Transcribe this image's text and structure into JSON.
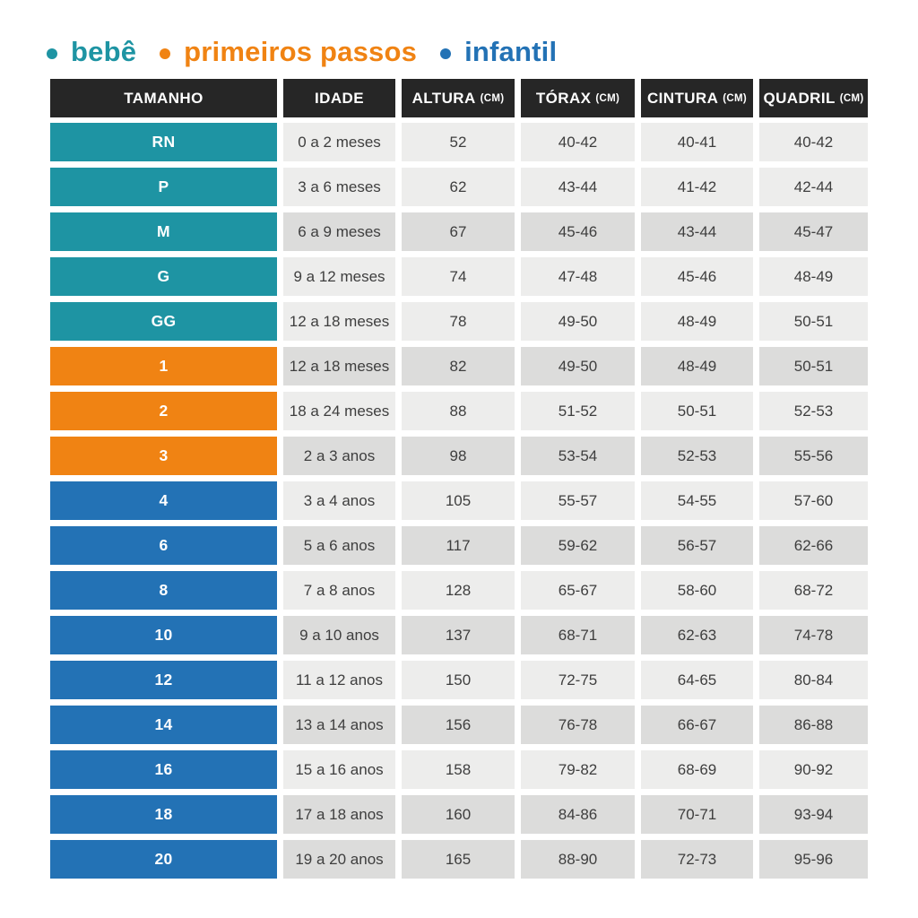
{
  "colors": {
    "bebe": "#1e94a3",
    "primeiros_passos": "#f08313",
    "infantil": "#2372b5",
    "header_bg": "#262626",
    "row_light": "#ededec",
    "row_dark": "#dcdcdb",
    "data_text": "#3e3e3e"
  },
  "chart_data": {
    "type": "table",
    "title": "",
    "legend": [
      {
        "label": "bebê",
        "group": "bebe"
      },
      {
        "label": "primeiros passos",
        "group": "primeiros_passos"
      },
      {
        "label": "infantil",
        "group": "infantil"
      }
    ],
    "columns": [
      {
        "label": "TAMANHO",
        "unit": ""
      },
      {
        "label": "IDADE",
        "unit": ""
      },
      {
        "label": "ALTURA",
        "unit": "(CM)"
      },
      {
        "label": "TÓRAX",
        "unit": "(CM)"
      },
      {
        "label": "CINTURA",
        "unit": "(CM)"
      },
      {
        "label": "QUADRIL",
        "unit": "(CM)"
      }
    ],
    "rows": [
      {
        "size": "RN",
        "group": "bebe",
        "idade": "0 a 2 meses",
        "altura": "52",
        "torax": "40-42",
        "cintura": "40-41",
        "quadril": "40-42"
      },
      {
        "size": "P",
        "group": "bebe",
        "idade": "3 a 6 meses",
        "altura": "62",
        "torax": "43-44",
        "cintura": "41-42",
        "quadril": "42-44"
      },
      {
        "size": "M",
        "group": "bebe",
        "idade": "6 a 9 meses",
        "altura": "67",
        "torax": "45-46",
        "cintura": "43-44",
        "quadril": "45-47"
      },
      {
        "size": "G",
        "group": "bebe",
        "idade": "9 a 12 meses",
        "altura": "74",
        "torax": "47-48",
        "cintura": "45-46",
        "quadril": "48-49"
      },
      {
        "size": "GG",
        "group": "bebe",
        "idade": "12 a 18 meses",
        "altura": "78",
        "torax": "49-50",
        "cintura": "48-49",
        "quadril": "50-51"
      },
      {
        "size": "1",
        "group": "primeiros_passos",
        "idade": "12 a 18 meses",
        "altura": "82",
        "torax": "49-50",
        "cintura": "48-49",
        "quadril": "50-51"
      },
      {
        "size": "2",
        "group": "primeiros_passos",
        "idade": "18 a 24 meses",
        "altura": "88",
        "torax": "51-52",
        "cintura": "50-51",
        "quadril": "52-53"
      },
      {
        "size": "3",
        "group": "primeiros_passos",
        "idade": "2 a 3 anos",
        "altura": "98",
        "torax": "53-54",
        "cintura": "52-53",
        "quadril": "55-56"
      },
      {
        "size": "4",
        "group": "infantil",
        "idade": "3 a 4 anos",
        "altura": "105",
        "torax": "55-57",
        "cintura": "54-55",
        "quadril": "57-60"
      },
      {
        "size": "6",
        "group": "infantil",
        "idade": "5 a 6 anos",
        "altura": "117",
        "torax": "59-62",
        "cintura": "56-57",
        "quadril": "62-66"
      },
      {
        "size": "8",
        "group": "infantil",
        "idade": "7 a 8 anos",
        "altura": "128",
        "torax": "65-67",
        "cintura": "58-60",
        "quadril": "68-72"
      },
      {
        "size": "10",
        "group": "infantil",
        "idade": "9 a 10 anos",
        "altura": "137",
        "torax": "68-71",
        "cintura": "62-63",
        "quadril": "74-78"
      },
      {
        "size": "12",
        "group": "infantil",
        "idade": "11 a 12 anos",
        "altura": "150",
        "torax": "72-75",
        "cintura": "64-65",
        "quadril": "80-84"
      },
      {
        "size": "14",
        "group": "infantil",
        "idade": "13 a 14 anos",
        "altura": "156",
        "torax": "76-78",
        "cintura": "66-67",
        "quadril": "86-88"
      },
      {
        "size": "16",
        "group": "infantil",
        "idade": "15 a 16 anos",
        "altura": "158",
        "torax": "79-82",
        "cintura": "68-69",
        "quadril": "90-92"
      },
      {
        "size": "18",
        "group": "infantil",
        "idade": "17 a 18 anos",
        "altura": "160",
        "torax": "84-86",
        "cintura": "70-71",
        "quadril": "93-94"
      },
      {
        "size": "20",
        "group": "infantil",
        "idade": "19 a 20 anos",
        "altura": "165",
        "torax": "88-90",
        "cintura": "72-73",
        "quadril": "95-96"
      }
    ]
  }
}
